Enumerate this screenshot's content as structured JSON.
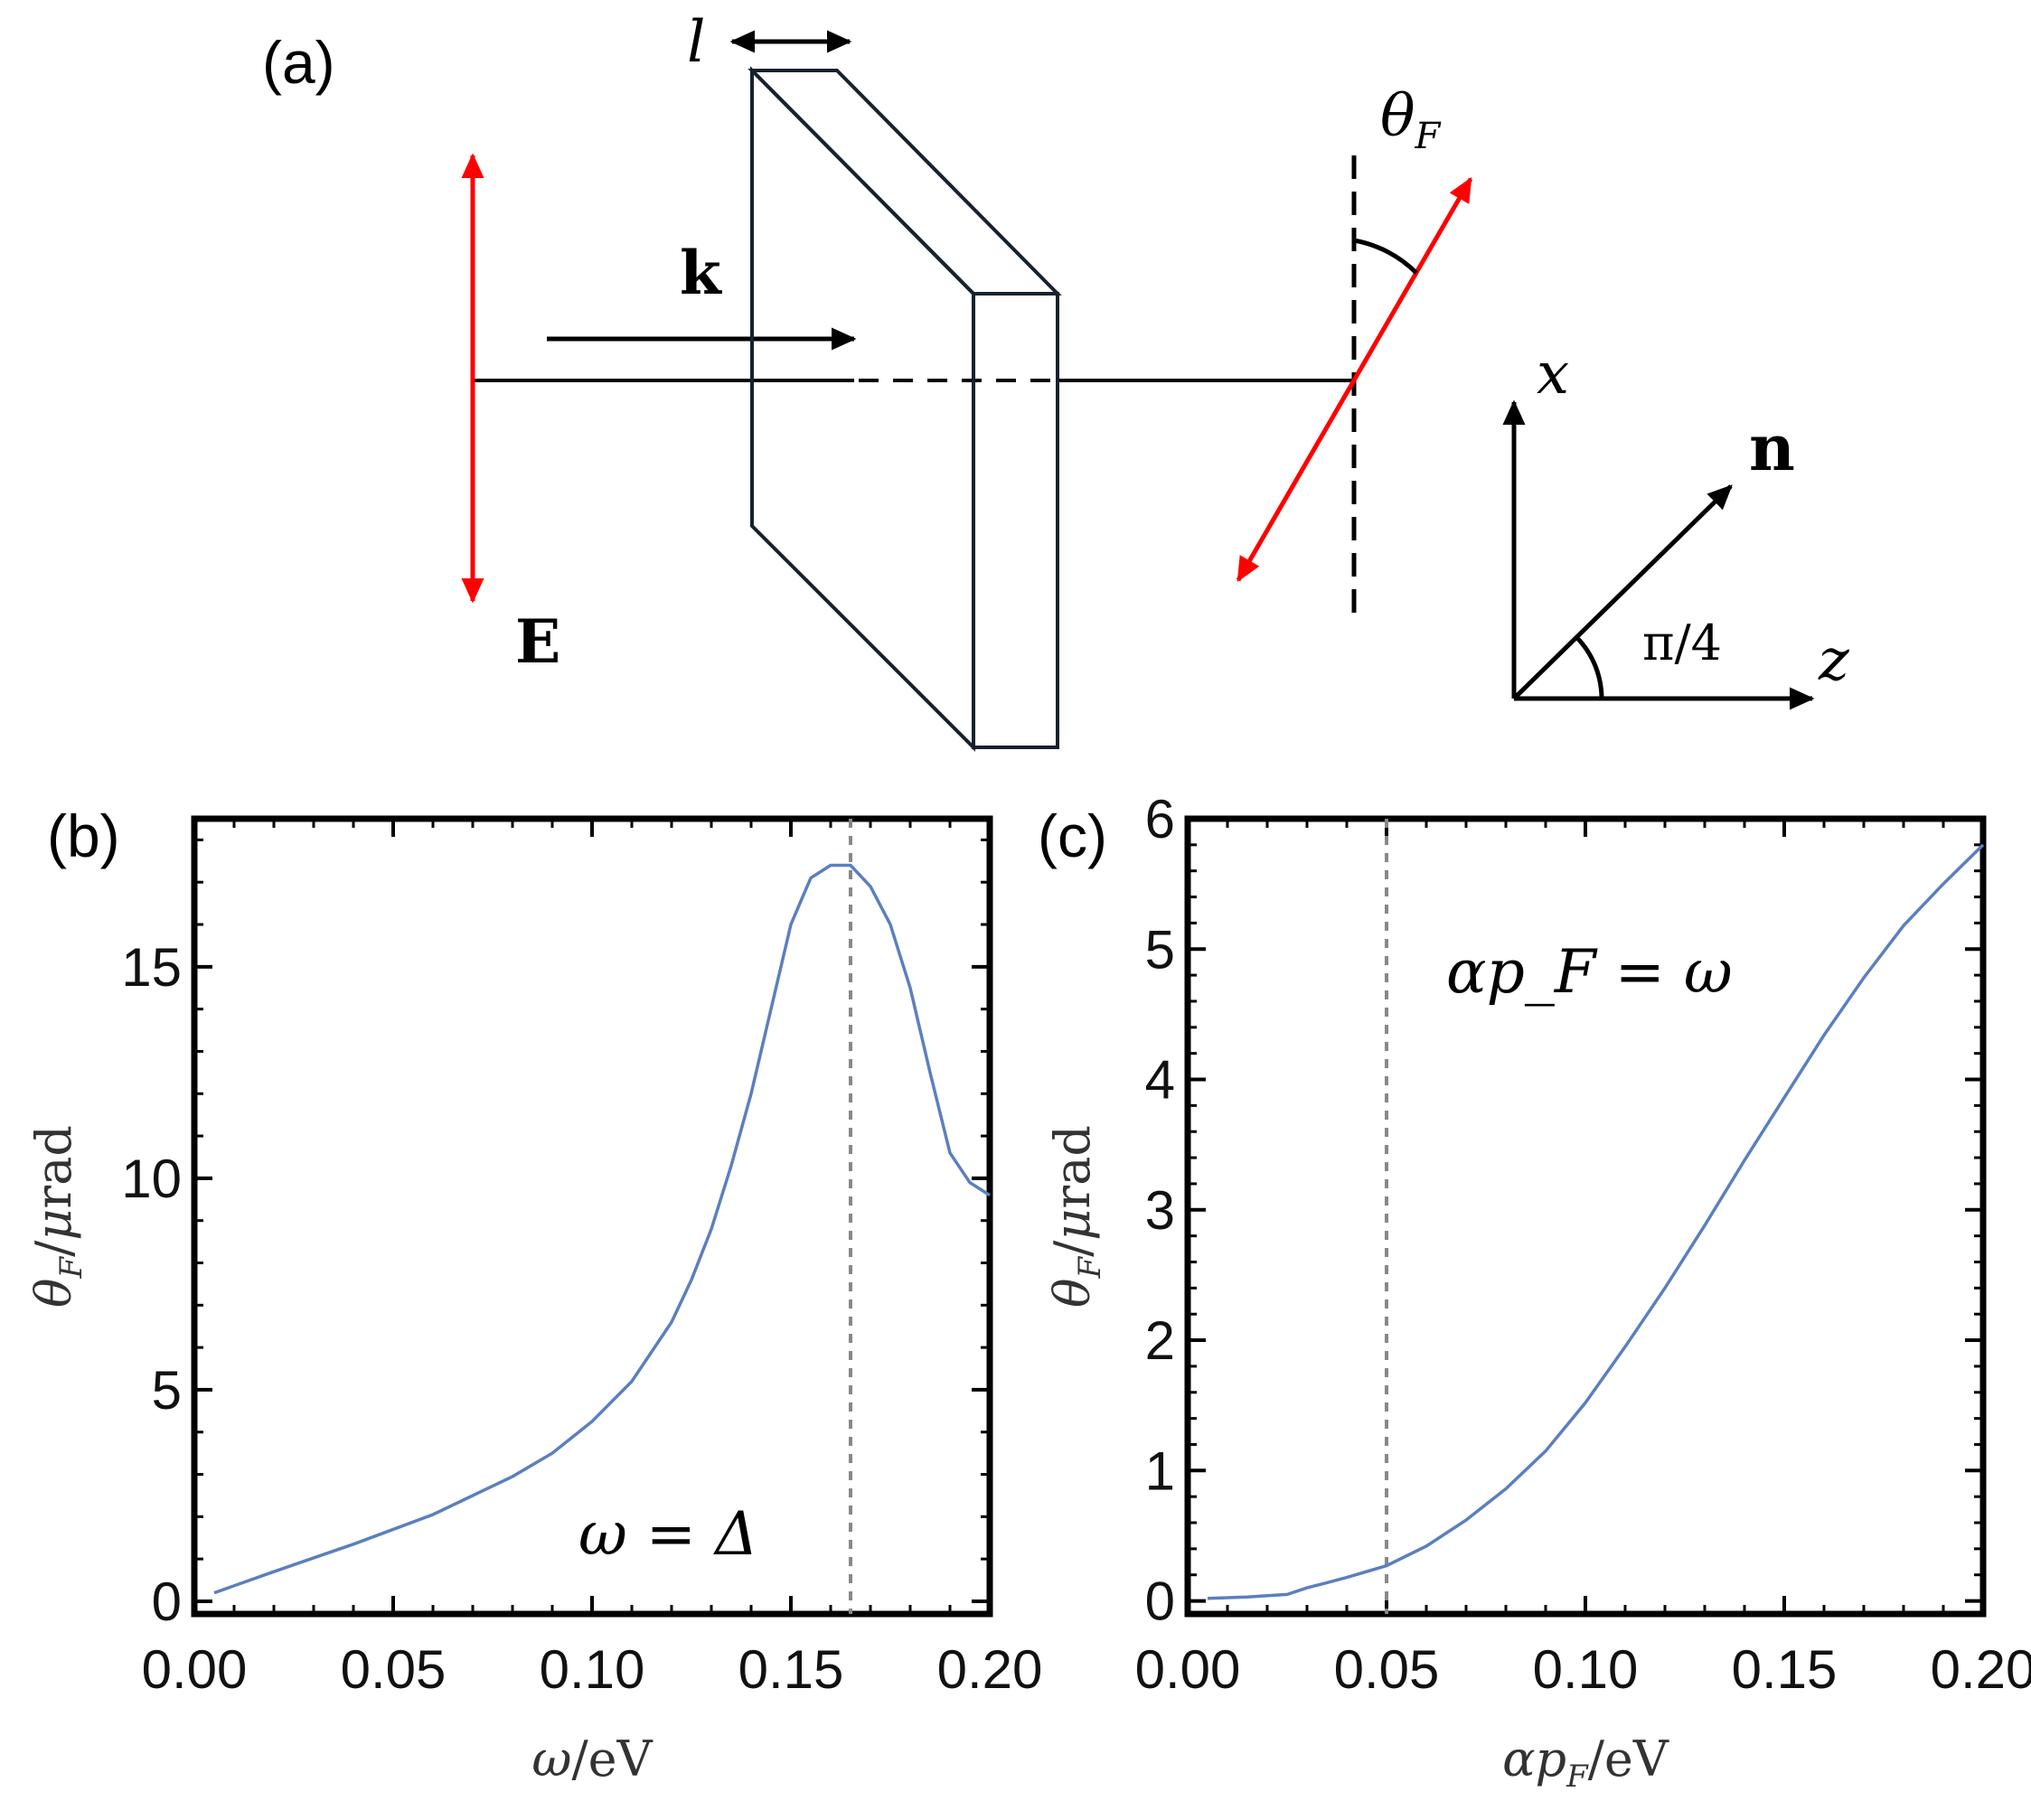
{
  "figure": {
    "labels": {
      "a": "(a)",
      "b": "(b)",
      "c": "(c)"
    },
    "schematic": {
      "thickness_label": "l",
      "wavevector_label": "k",
      "field_label": "E",
      "rotation_label": "θ",
      "rotation_subscript": "F",
      "axis_x": "x",
      "axis_z": "z",
      "vector_label": "n",
      "angle_label": "π/4",
      "colors": {
        "polarization": "#ff0000",
        "slab": "#17222e",
        "lines": "#000000"
      }
    }
  },
  "chart_data": [
    {
      "type": "line",
      "panel": "(b)",
      "xlabel": "ω/eV",
      "ylabel": "θ_F/μrad",
      "xlim": [
        0,
        0.2
      ],
      "ylim": [
        -0.3,
        18.5
      ],
      "xticks": [
        "0.00",
        "0.05",
        "0.10",
        "0.15",
        "0.20"
      ],
      "yticks": [
        "0",
        "5",
        "10",
        "15"
      ],
      "annotation": "ω = Δ",
      "vline": 0.165,
      "grid": false,
      "color": "#5b7fbf",
      "series": [
        {
          "x": [
            0.005,
            0.02,
            0.04,
            0.06,
            0.08,
            0.09,
            0.1,
            0.11,
            0.12,
            0.125,
            0.13,
            0.135,
            0.14,
            0.145,
            0.15,
            0.155,
            0.16,
            0.165,
            0.17,
            0.175,
            0.18,
            0.185,
            0.19,
            0.195,
            0.2
          ],
          "y": [
            0.2,
            0.7,
            1.35,
            2.05,
            2.95,
            3.5,
            4.25,
            5.2,
            6.6,
            7.6,
            8.8,
            10.3,
            12.0,
            14.0,
            16.0,
            17.1,
            17.4,
            17.4,
            16.9,
            16.0,
            14.5,
            12.5,
            10.6,
            9.9,
            9.6
          ]
        }
      ]
    },
    {
      "type": "line",
      "panel": "(c)",
      "xlabel": "αp_F/eV",
      "ylabel": "θ_F/μrad",
      "xlim": [
        0,
        0.2
      ],
      "ylim": [
        -0.1,
        6.0
      ],
      "xticks": [
        "0.00",
        "0.05",
        "0.10",
        "0.15",
        "0.20"
      ],
      "yticks": [
        "0",
        "1",
        "2",
        "3",
        "4",
        "5",
        "6"
      ],
      "annotation": "αp_F = ω",
      "vline": 0.05,
      "grid": false,
      "color": "#5b7fbf",
      "series": [
        {
          "x": [
            0.005,
            0.015,
            0.025,
            0.03,
            0.035,
            0.04,
            0.05,
            0.06,
            0.07,
            0.08,
            0.09,
            0.1,
            0.11,
            0.12,
            0.13,
            0.14,
            0.15,
            0.16,
            0.17,
            0.18,
            0.19,
            0.2
          ],
          "y": [
            0.02,
            0.03,
            0.05,
            0.1,
            0.14,
            0.18,
            0.27,
            0.42,
            0.62,
            0.86,
            1.15,
            1.52,
            1.95,
            2.4,
            2.88,
            3.38,
            3.86,
            4.34,
            4.78,
            5.18,
            5.5,
            5.8
          ]
        }
      ]
    }
  ]
}
